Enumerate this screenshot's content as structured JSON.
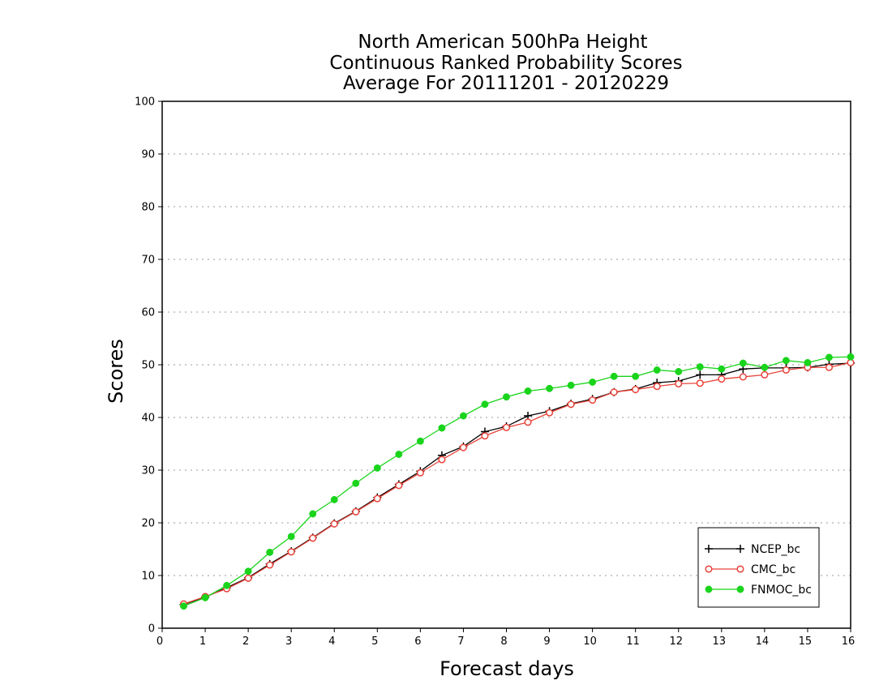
{
  "chart_data": {
    "type": "line",
    "title_lines": [
      "North American 500hPa Height",
      "Continuous Ranked Probability Scores",
      "Average For 20111201 - 20120229"
    ],
    "xlabel": "Forecast days",
    "ylabel": "Scores",
    "xlim": [
      0,
      16
    ],
    "ylim": [
      0,
      100
    ],
    "x_ticks": [
      0,
      1,
      2,
      3,
      4,
      5,
      6,
      7,
      8,
      9,
      10,
      11,
      12,
      13,
      14,
      15,
      16
    ],
    "y_ticks": [
      0,
      10,
      20,
      30,
      40,
      50,
      60,
      70,
      80,
      90,
      100
    ],
    "grid": "horizontal dotted",
    "legend_position": "bottom-right",
    "x": [
      0.5,
      1,
      1.5,
      2,
      2.5,
      3,
      3.5,
      4,
      4.5,
      5,
      5.5,
      6,
      6.5,
      7,
      7.5,
      8,
      8.5,
      9,
      9.5,
      10,
      10.5,
      11,
      11.5,
      12,
      12.5,
      13,
      13.5,
      14,
      14.5,
      15,
      15.5,
      16
    ],
    "series": [
      {
        "name": "NCEP_bc",
        "color": "#000000",
        "marker": "plus",
        "values": [
          4.5,
          5.9,
          7.7,
          9.6,
          12.2,
          14.6,
          17.2,
          19.9,
          22.2,
          24.8,
          27.3,
          29.8,
          32.8,
          34.5,
          37.3,
          38.3,
          40.3,
          41.2,
          42.6,
          43.5,
          44.8,
          45.4,
          46.6,
          46.9,
          48.1,
          48.1,
          49.2,
          49.4,
          49.4,
          49.5,
          50.1,
          50.3
        ]
      },
      {
        "name": "CMC_bc",
        "color": "#e8443a",
        "marker": "open-circle",
        "values": [
          4.6,
          6.0,
          7.5,
          9.5,
          12.0,
          14.5,
          17.1,
          19.8,
          22.1,
          24.6,
          27.1,
          29.5,
          32.0,
          34.3,
          36.5,
          38.1,
          39.1,
          40.9,
          42.5,
          43.3,
          44.8,
          45.3,
          45.9,
          46.4,
          46.5,
          47.3,
          47.7,
          48.1,
          49.0,
          49.5,
          49.5,
          50.4
        ]
      },
      {
        "name": "FNMOC_bc",
        "color": "#19d41b",
        "marker": "filled-circle",
        "values": [
          4.2,
          5.8,
          8.1,
          10.8,
          14.4,
          17.4,
          21.7,
          24.4,
          27.5,
          30.4,
          33.0,
          35.5,
          38.0,
          40.3,
          42.5,
          43.9,
          45.0,
          45.5,
          46.1,
          46.7,
          47.8,
          47.8,
          49.0,
          48.7,
          49.6,
          49.2,
          50.3,
          49.5,
          50.8,
          50.4,
          51.4,
          51.5
        ]
      }
    ]
  }
}
